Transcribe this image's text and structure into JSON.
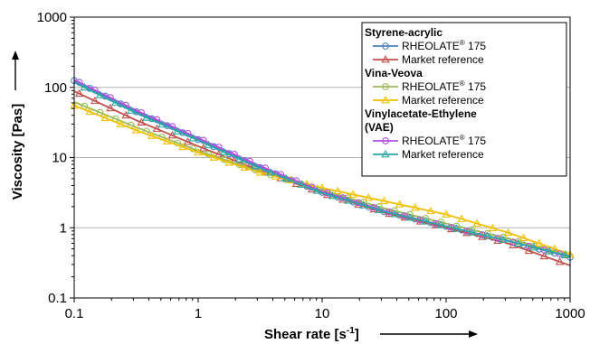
{
  "chart_data": {
    "type": "line",
    "xlabel": "Shear rate [s",
    "xlabel_sup": "-1",
    "xlabel_close": "]",
    "ylabel": "Viscosity [Pas]",
    "xscale": "log",
    "yscale": "log",
    "xlim": [
      0.1,
      1000
    ],
    "ylim": [
      0.1,
      1000
    ],
    "x_ticks": [
      "0.1",
      "1",
      "10",
      "100",
      "1000"
    ],
    "y_ticks": [
      "0.1",
      "1",
      "10",
      "100",
      "1000"
    ],
    "grid": "horizontal",
    "legend_position": "top-right",
    "legend_groups": [
      {
        "title": "Styrene-acrylic",
        "entries": [
          {
            "label": "RHEOLATE",
            "sup": "®",
            "suffix": " 175",
            "color": "#4f81bd",
            "marker": "circle",
            "series": 0
          },
          {
            "label": "Market reference",
            "sup": "",
            "suffix": "",
            "color": "#c0504d",
            "marker": "triangle",
            "series": 1
          }
        ]
      },
      {
        "title": "Vina-Veova",
        "entries": [
          {
            "label": "RHEOLATE",
            "sup": "®",
            "suffix": " 175",
            "color": "#9bbb59",
            "marker": "circle",
            "series": 2
          },
          {
            "label": "Market reference",
            "sup": "",
            "suffix": "",
            "color": "#f0c000",
            "marker": "triangle",
            "series": 3
          }
        ]
      },
      {
        "title": "Vinylacetate-Ethylene",
        "title2": "(VAE)",
        "entries": [
          {
            "label": "RHEOLATE",
            "sup": "®",
            "suffix": " 175",
            "color": "#b050e0",
            "marker": "circle",
            "series": 4
          },
          {
            "label": "Market reference",
            "sup": "",
            "suffix": "",
            "color": "#2ca7a7",
            "marker": "triangle",
            "series": 5
          }
        ]
      }
    ],
    "series": [
      {
        "group": "Styrene-acrylic",
        "name": "RHEOLATE® 175",
        "color": "#4f81bd",
        "marker": "circle",
        "x": [
          0.1,
          0.316,
          1,
          3.16,
          10,
          31.6,
          100,
          316,
          1000
        ],
        "y": [
          125,
          45,
          18,
          7.2,
          3.2,
          1.7,
          1.05,
          0.65,
          0.38
        ]
      },
      {
        "group": "Styrene-acrylic",
        "name": "Market reference",
        "color": "#c0504d",
        "marker": "triangle",
        "x": [
          0.1,
          0.316,
          1,
          3.16,
          10,
          31.6,
          100,
          316,
          1000
        ],
        "y": [
          88,
          34,
          14.5,
          6.5,
          3.1,
          1.65,
          1.0,
          0.6,
          0.29
        ]
      },
      {
        "group": "Vina-Veova",
        "name": "RHEOLATE® 175",
        "color": "#9bbb59",
        "marker": "circle",
        "x": [
          0.1,
          0.316,
          1,
          3.16,
          10,
          31.6,
          100,
          316,
          1000
        ],
        "y": [
          62,
          27,
          12.5,
          6.3,
          3.4,
          1.9,
          1.15,
          0.7,
          0.4
        ]
      },
      {
        "group": "Vina-Veova",
        "name": "Market reference",
        "color": "#f0c000",
        "marker": "triangle",
        "x": [
          0.1,
          0.316,
          1,
          3.16,
          10,
          31.6,
          100,
          316,
          1000
        ],
        "y": [
          55,
          24.5,
          11.8,
          6.1,
          3.7,
          2.4,
          1.55,
          0.85,
          0.42
        ]
      },
      {
        "group": "Vinylacetate-Ethylene (VAE)",
        "name": "RHEOLATE® 175",
        "color": "#b050e0",
        "marker": "circle",
        "x": [
          0.1,
          0.316,
          1,
          3.16,
          10,
          31.6,
          100,
          316,
          1000
        ],
        "y": [
          128,
          47,
          19,
          7.6,
          3.3,
          1.75,
          1.05,
          0.65,
          0.39
        ]
      },
      {
        "group": "Vinylacetate-Ethylene (VAE)",
        "name": "Market reference",
        "color": "#2ca7a7",
        "marker": "triangle",
        "x": [
          0.1,
          0.316,
          1,
          3.16,
          10,
          31.6,
          100,
          316,
          1000
        ],
        "y": [
          118,
          43,
          17.5,
          7.0,
          3.15,
          1.7,
          1.05,
          0.65,
          0.39
        ]
      }
    ]
  }
}
